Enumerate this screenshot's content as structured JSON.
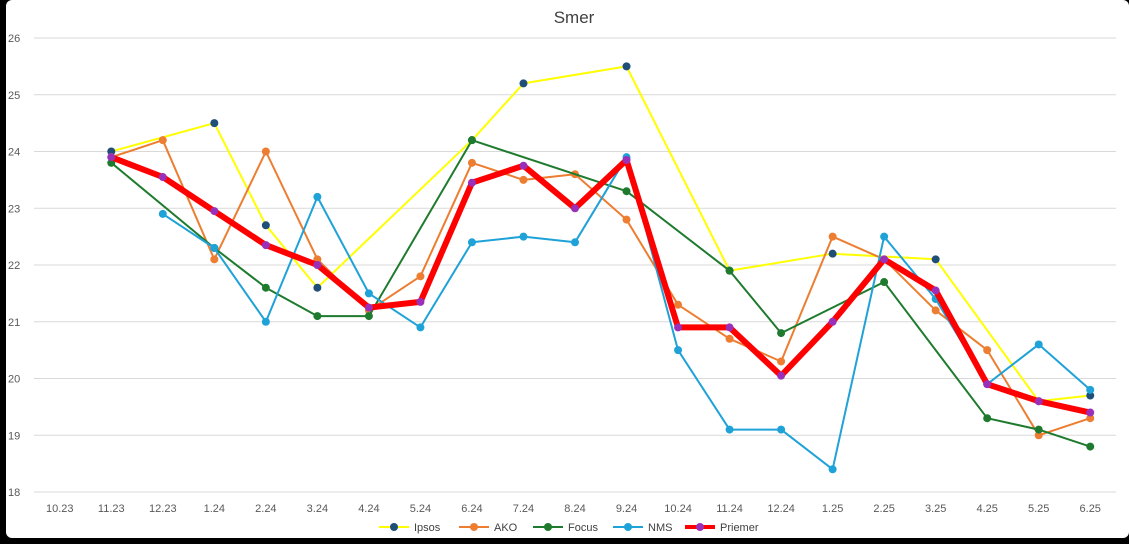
{
  "chart_data": {
    "type": "line",
    "title": "Smer",
    "categories": [
      "10.23",
      "11.23",
      "12.23",
      "1.24",
      "2.24",
      "3.24",
      "4.24",
      "5.24",
      "6.24",
      "7.24",
      "8.24",
      "9.24",
      "10.24",
      "11.24",
      "12.24",
      "1.25",
      "2.25",
      "3.25",
      "4.25",
      "5.25",
      "6.25"
    ],
    "ylim": [
      18,
      26
    ],
    "yticks": [
      18,
      19,
      20,
      21,
      22,
      23,
      24,
      25,
      26
    ],
    "grid": true,
    "legend_position": "bottom",
    "series": [
      {
        "name": "Ipsos",
        "line_color": "#FFFF00",
        "marker_color": "#1F4E79",
        "line_width": 2,
        "points": [
          [
            1,
            24.0
          ],
          [
            3,
            24.5
          ],
          [
            4,
            22.7
          ],
          [
            5,
            21.6
          ],
          [
            8,
            24.2
          ],
          [
            9,
            25.2
          ],
          [
            11,
            25.5
          ],
          [
            13,
            21.9
          ],
          [
            15,
            22.2
          ],
          [
            17,
            22.1
          ],
          [
            19,
            19.6
          ],
          [
            20,
            19.7
          ]
        ]
      },
      {
        "name": "AKO",
        "line_color": "#ED7D31",
        "marker_color": "#ED7D31",
        "line_width": 2,
        "points": [
          [
            1,
            23.9
          ],
          [
            2,
            24.2
          ],
          [
            3,
            22.1
          ],
          [
            4,
            24.0
          ],
          [
            5,
            22.1
          ],
          [
            6,
            21.2
          ],
          [
            7,
            21.8
          ],
          [
            8,
            23.8
          ],
          [
            9,
            23.5
          ],
          [
            10,
            23.6
          ],
          [
            11,
            22.8
          ],
          [
            12,
            21.3
          ],
          [
            13,
            20.7
          ],
          [
            14,
            20.3
          ],
          [
            15,
            22.5
          ],
          [
            16,
            22.1
          ],
          [
            17,
            21.2
          ],
          [
            18,
            20.5
          ],
          [
            19,
            19.0
          ],
          [
            20,
            19.3
          ]
        ]
      },
      {
        "name": "Focus",
        "line_color": "#1E7B2E",
        "marker_color": "#1E7B2E",
        "line_width": 2,
        "points": [
          [
            1,
            23.8
          ],
          [
            3,
            22.3
          ],
          [
            4,
            21.6
          ],
          [
            5,
            21.1
          ],
          [
            6,
            21.1
          ],
          [
            8,
            24.2
          ],
          [
            11,
            23.3
          ],
          [
            13,
            21.9
          ],
          [
            14,
            20.8
          ],
          [
            16,
            21.7
          ],
          [
            18,
            19.3
          ],
          [
            19,
            19.1
          ],
          [
            20,
            18.8
          ]
        ]
      },
      {
        "name": "NMS",
        "line_color": "#1FA2D8",
        "marker_color": "#1FA2D8",
        "line_width": 2,
        "points": [
          [
            2,
            22.9
          ],
          [
            3,
            22.3
          ],
          [
            4,
            21.0
          ],
          [
            5,
            23.2
          ],
          [
            6,
            21.5
          ],
          [
            7,
            20.9
          ],
          [
            8,
            22.4
          ],
          [
            9,
            22.5
          ],
          [
            10,
            22.4
          ],
          [
            11,
            23.9
          ],
          [
            12,
            20.5
          ],
          [
            13,
            19.1
          ],
          [
            14,
            19.1
          ],
          [
            15,
            18.4
          ],
          [
            16,
            22.5
          ],
          [
            17,
            21.4
          ],
          [
            18,
            19.9
          ],
          [
            19,
            20.6
          ],
          [
            20,
            19.8
          ]
        ]
      },
      {
        "name": "Priemer",
        "line_color": "#FF0000",
        "marker_color": "#9B30B8",
        "line_width": 6,
        "points": [
          [
            1,
            23.9
          ],
          [
            2,
            23.55
          ],
          [
            3,
            22.95
          ],
          [
            4,
            22.35
          ],
          [
            5,
            22.0
          ],
          [
            6,
            21.25
          ],
          [
            7,
            21.35
          ],
          [
            8,
            23.45
          ],
          [
            9,
            23.75
          ],
          [
            10,
            23.0
          ],
          [
            11,
            23.85
          ],
          [
            12,
            20.9
          ],
          [
            13,
            20.9
          ],
          [
            14,
            20.05
          ],
          [
            15,
            21.0
          ],
          [
            16,
            22.1
          ],
          [
            17,
            21.55
          ],
          [
            18,
            19.9
          ],
          [
            19,
            19.6
          ],
          [
            20,
            19.4
          ]
        ]
      }
    ]
  }
}
